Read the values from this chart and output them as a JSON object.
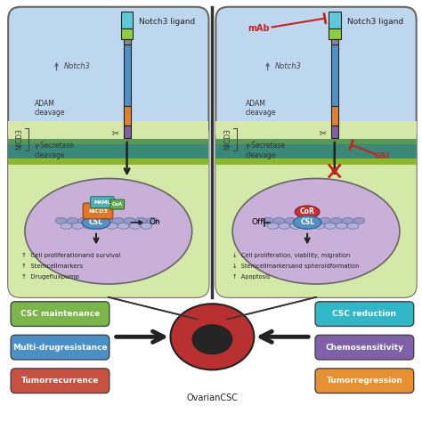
{
  "bg_color": "#ffffff",
  "sky_blue": "#bdd7ee",
  "green_cell": "#d4e8a8",
  "purple_nuc": "#c8b0d8",
  "mem_teal": "#3a8878",
  "mem_green": "#8ab828",
  "left_panel": {
    "title": "Notch3 ligand",
    "notch3_label": "Notch3",
    "adam_label": "ADAM\ncleavage",
    "gamma_label": "γ-Secretase\ncleavage",
    "nicd_label": "NICD3",
    "on_label": "On",
    "csl_label": "CSL",
    "maml_label": "MAML",
    "coa_label": "CoA",
    "effects": [
      "↑  Cell proliferationand survival",
      "↑  Stemcellmarkers",
      "↑  Drugefluxpump"
    ]
  },
  "right_panel": {
    "title": "Notch3 ligand",
    "mab_label": "mAb",
    "gsi_label": "GSI",
    "notch3_label": "Notch3",
    "adam_label": "ADAM\ncleavage",
    "gamma_label": "γ-Secretase\ncleavage",
    "nicd_label": "NICD3",
    "off_label": "Off",
    "csl_label": "CSL",
    "cor_label": "CoR",
    "effects": [
      "↓  Cell proliferation, viability, migration",
      "↓  Stemcellmarkersand spheroidformation",
      "↑  Apoptosis"
    ]
  },
  "left_boxes": [
    {
      "label": "CSC maintenance",
      "color": "#7ab648"
    },
    {
      "label": "Multi-drugresistance",
      "color": "#4a90c8"
    },
    {
      "label": "Tumorrecurrence",
      "color": "#c85040"
    }
  ],
  "right_boxes": [
    {
      "label": "CSC reduction",
      "color": "#30b8c8"
    },
    {
      "label": "Chemosensitivity",
      "color": "#8060a8"
    },
    {
      "label": "Tumorregression",
      "color": "#e89030"
    }
  ],
  "csc_label": "OvarianCSC",
  "inhibit_color": "#cc2020",
  "arrow_color": "#222222"
}
